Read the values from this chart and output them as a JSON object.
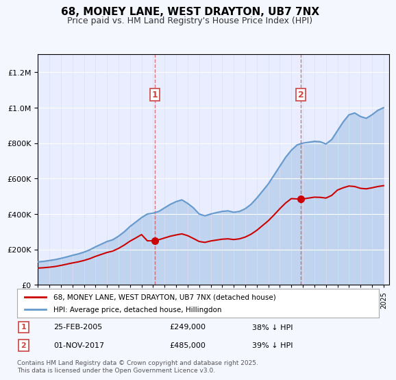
{
  "title": "68, MONEY LANE, WEST DRAYTON, UB7 7NX",
  "subtitle": "Price paid vs. HM Land Registry's House Price Index (HPI)",
  "bg_color": "#f0f4ff",
  "plot_bg_color": "#e8eeff",
  "sale1": {
    "date": 2005.15,
    "price": 249000,
    "label": "1",
    "note": "25-FEB-2005",
    "hpi_diff": "38% ↓ HPI"
  },
  "sale2": {
    "date": 2017.83,
    "price": 485000,
    "label": "2",
    "note": "01-NOV-2017",
    "hpi_diff": "39% ↓ HPI"
  },
  "vline1_x": 2005.15,
  "vline2_x": 2017.83,
  "legend_line1": "68, MONEY LANE, WEST DRAYTON, UB7 7NX (detached house)",
  "legend_line2": "HPI: Average price, detached house, Hillingdon",
  "footer": "Contains HM Land Registry data © Crown copyright and database right 2025.\nThis data is licensed under the Open Government Licence v3.0.",
  "ylim": [
    0,
    1300000
  ],
  "xlim_start": 1995.0,
  "xlim_end": 2025.5,
  "red_color": "#cc0000",
  "blue_color": "#6699cc",
  "blue_fill": "#c8d8f0"
}
